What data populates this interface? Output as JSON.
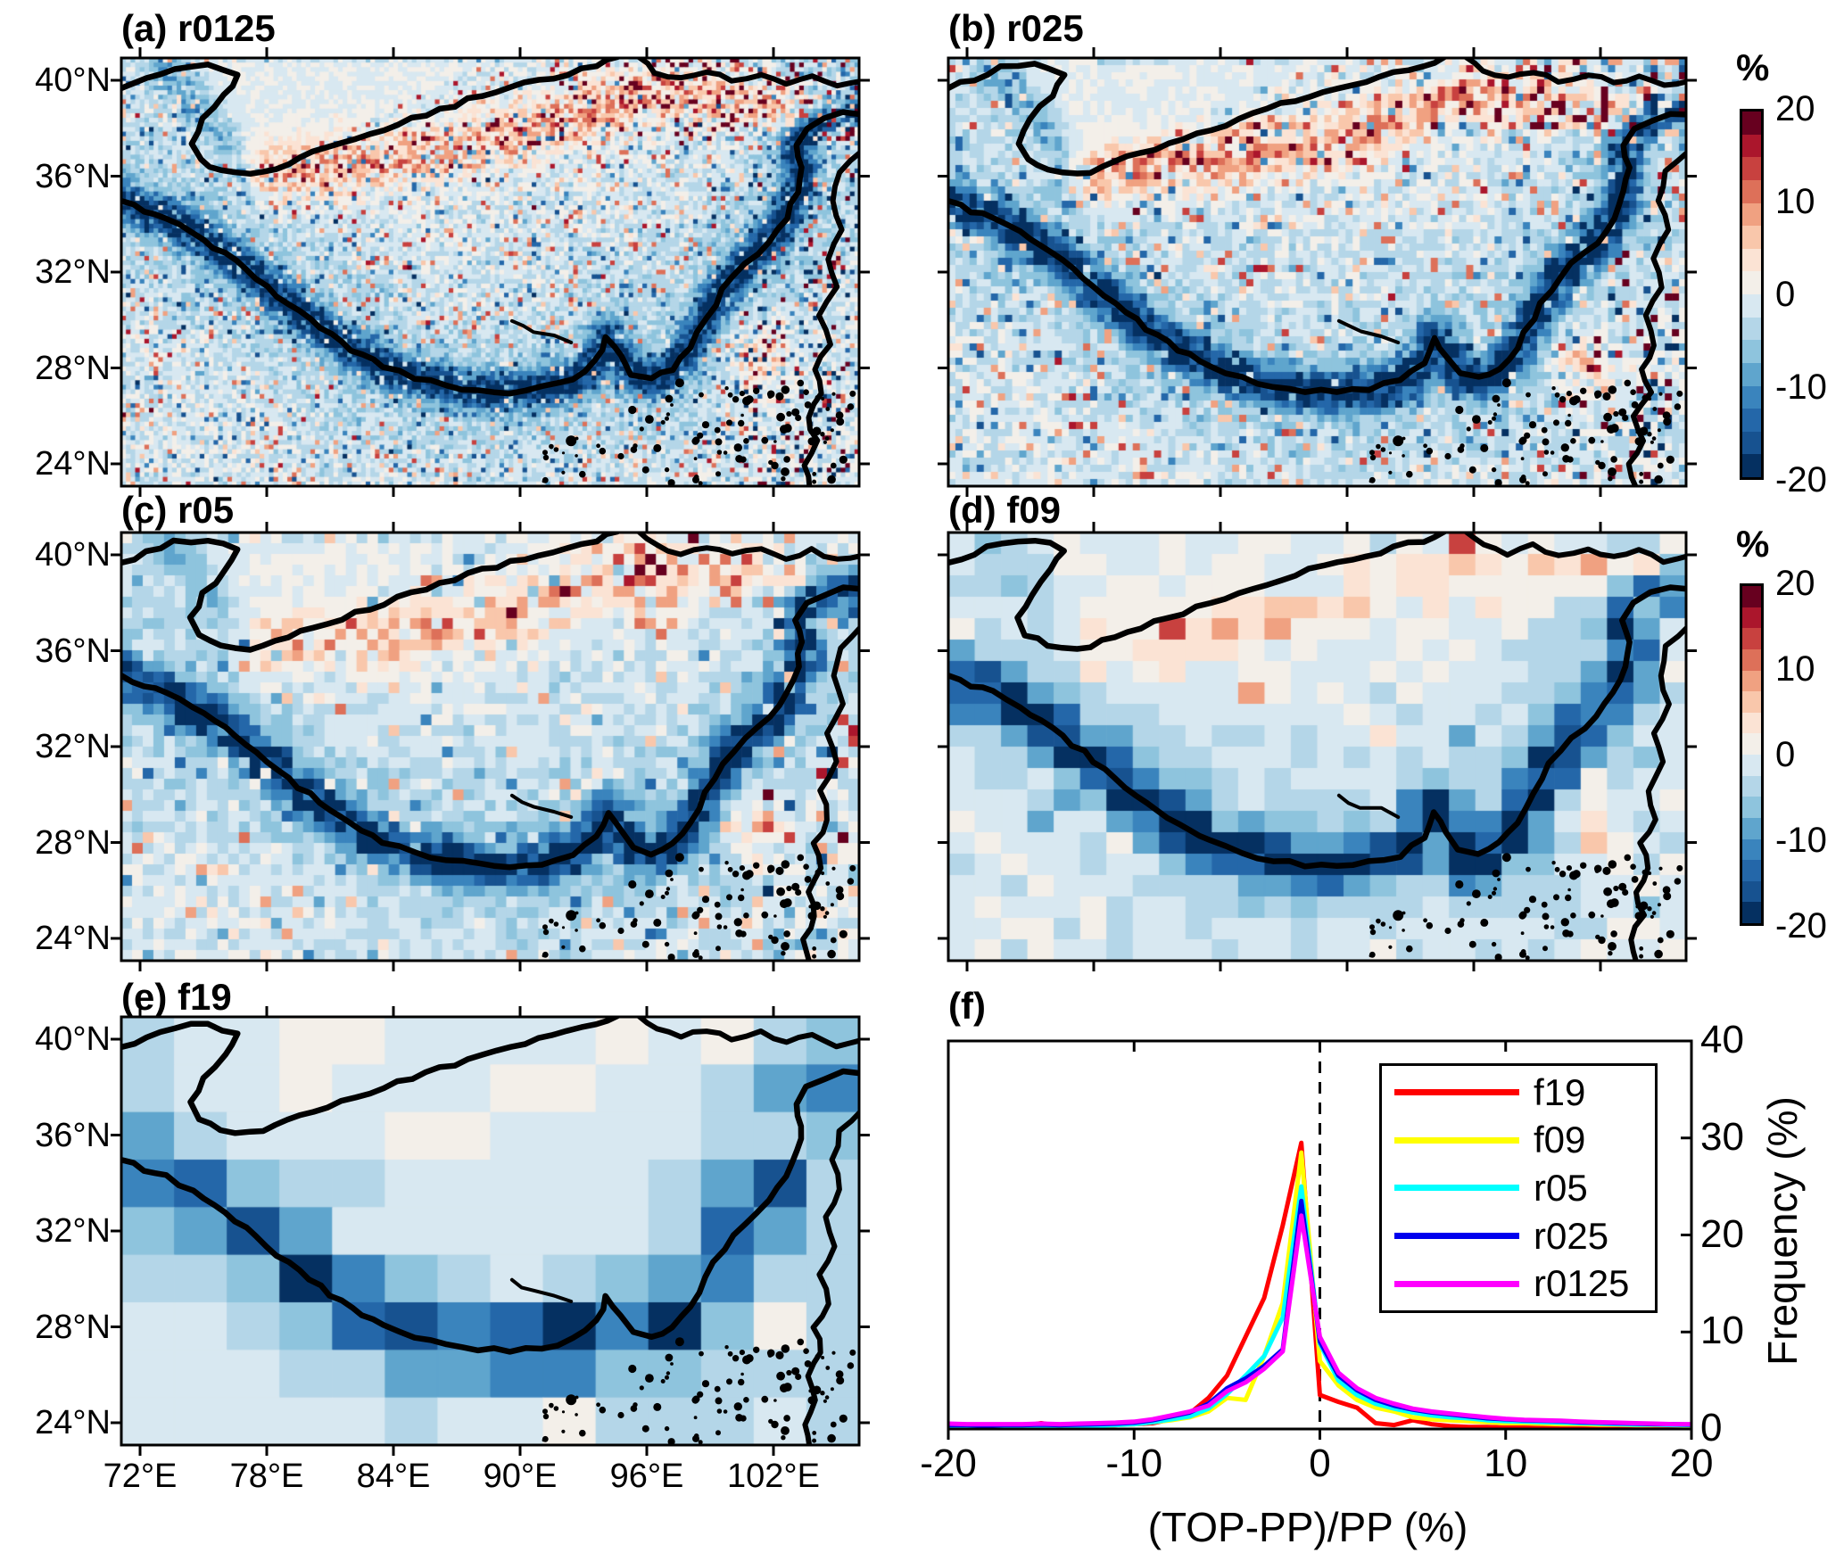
{
  "panels": {
    "a": {
      "label": "(a) r0125"
    },
    "b": {
      "label": "(b) r025"
    },
    "c": {
      "label": "(c) r05"
    },
    "d": {
      "label": "(d) f09"
    },
    "e": {
      "label": "(e) f19"
    },
    "f": {
      "label": "(f)"
    }
  },
  "map_axes": {
    "lat_ticks": [
      "40°N",
      "36°N",
      "32°N",
      "28°N",
      "24°N"
    ],
    "lon_ticks": [
      "72°E",
      "78°E",
      "84°E",
      "90°E",
      "96°E",
      "102°E"
    ]
  },
  "colorbar": {
    "title": "%",
    "tick_labels": [
      "20",
      "10",
      "0",
      "-10",
      "-20"
    ],
    "value_range": [
      -20,
      20
    ],
    "palette_neg_to_pos": [
      "#053061",
      "#175290",
      "#2467a9",
      "#3a84bd",
      "#5fa5cd",
      "#8ec4dd",
      "#b4d6e8",
      "#d8e8f1",
      "#f3efe9",
      "#fbe3d4",
      "#f9c7ab",
      "#f0a181",
      "#dd7059",
      "#c8413f",
      "#ab162c",
      "#67001f"
    ]
  },
  "chart_data": {
    "type": "line",
    "panel": "(f)",
    "xlabel": "(TOP-PP)/PP (%)",
    "ylabel": "Frequency (%)",
    "xlim": [
      -20,
      20
    ],
    "ylim": [
      0,
      40
    ],
    "x_ticks": [
      -20,
      -10,
      0,
      10,
      20
    ],
    "y_ticks": [
      0,
      10,
      20,
      30,
      40
    ],
    "reference_line_x": 0,
    "legend_position": "upper right",
    "x": [
      -20,
      -19,
      -18,
      -17,
      -16,
      -15,
      -14,
      -13,
      -12,
      -11,
      -10,
      -9,
      -8,
      -7,
      -6,
      -5,
      -4,
      -3,
      -2,
      -1,
      0,
      1,
      2,
      3,
      4,
      5,
      6,
      7,
      8,
      9,
      10,
      11,
      12,
      13,
      14,
      15,
      16,
      17,
      18,
      19,
      20
    ],
    "series": [
      {
        "name": "f19",
        "color": "#ff0000",
        "values": [
          0.3,
          0.2,
          0.3,
          0.2,
          0.3,
          0.6,
          0.3,
          0.4,
          0.3,
          0.4,
          0.5,
          0.6,
          1.0,
          1.6,
          3.2,
          5.5,
          9.5,
          13.5,
          21.0,
          29.5,
          3.5,
          2.8,
          2.2,
          0.6,
          0.4,
          0.9,
          0.5,
          0.3,
          0.2,
          0.2,
          0.15,
          0.15,
          0.1,
          0.2,
          0.3,
          0.25,
          0.1,
          0.1,
          0.1,
          0.1,
          0.1
        ]
      },
      {
        "name": "f09",
        "color": "#ffff00",
        "values": [
          0.4,
          0.35,
          0.3,
          0.3,
          0.3,
          0.35,
          0.3,
          0.35,
          0.3,
          0.4,
          0.5,
          0.7,
          0.9,
          1.2,
          1.8,
          3.2,
          3.0,
          7.5,
          13.0,
          28.5,
          7.0,
          4.5,
          3.0,
          2.2,
          1.8,
          1.2,
          1.0,
          0.9,
          0.8,
          0.7,
          0.6,
          0.6,
          0.55,
          0.5,
          0.5,
          0.45,
          0.45,
          0.4,
          0.4,
          0.4,
          0.35
        ]
      },
      {
        "name": "r05",
        "color": "#00ffff",
        "values": [
          0.35,
          0.3,
          0.3,
          0.3,
          0.35,
          0.3,
          0.35,
          0.3,
          0.35,
          0.4,
          0.5,
          0.7,
          1.0,
          1.3,
          2.1,
          3.6,
          5.5,
          7.5,
          11.5,
          25.0,
          8.8,
          5.0,
          3.5,
          2.6,
          2.1,
          1.7,
          1.4,
          1.2,
          1.1,
          0.9,
          0.8,
          0.75,
          0.7,
          0.65,
          0.6,
          0.55,
          0.5,
          0.45,
          0.45,
          0.4,
          0.4
        ]
      },
      {
        "name": "r025",
        "color": "#0000ee",
        "values": [
          0.4,
          0.4,
          0.35,
          0.4,
          0.4,
          0.45,
          0.4,
          0.45,
          0.5,
          0.55,
          0.65,
          0.9,
          1.3,
          1.7,
          2.6,
          4.2,
          5.2,
          6.5,
          8.2,
          23.5,
          9.0,
          5.5,
          4.0,
          3.0,
          2.4,
          2.0,
          1.7,
          1.5,
          1.3,
          1.1,
          1.0,
          0.9,
          0.85,
          0.8,
          0.7,
          0.65,
          0.6,
          0.55,
          0.5,
          0.5,
          0.45
        ]
      },
      {
        "name": "r0125",
        "color": "#ff00ff",
        "values": [
          0.55,
          0.5,
          0.5,
          0.5,
          0.5,
          0.55,
          0.5,
          0.55,
          0.6,
          0.65,
          0.75,
          1.0,
          1.4,
          1.8,
          2.4,
          3.9,
          4.8,
          6.2,
          8.0,
          22.0,
          9.5,
          5.8,
          4.2,
          3.2,
          2.6,
          2.1,
          1.8,
          1.6,
          1.4,
          1.2,
          1.05,
          0.95,
          0.9,
          0.85,
          0.75,
          0.7,
          0.65,
          0.6,
          0.55,
          0.5,
          0.5
        ]
      }
    ]
  },
  "maps_meaning": {
    "quantity": "(TOP-PP)/PP (%)",
    "value_range": [
      -20,
      20
    ],
    "region": "Tibetan Plateau, 72°E–102°E, 24°N–40°N"
  }
}
